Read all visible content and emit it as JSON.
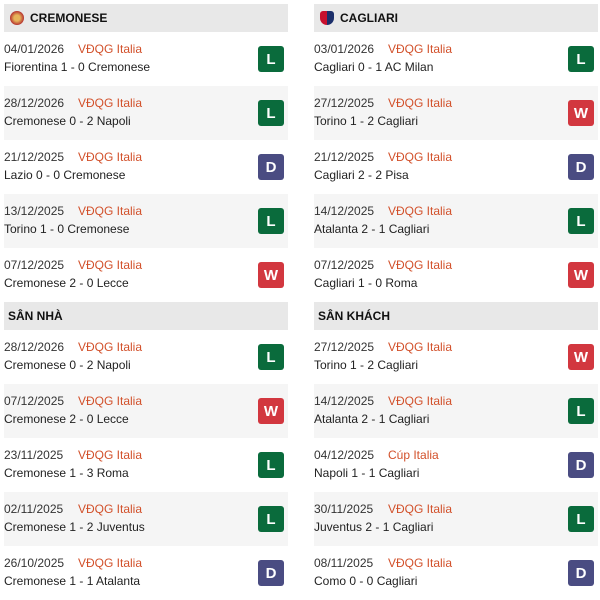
{
  "left": {
    "team": "CREMONESE",
    "team_logo": "cremonese-crest-icon",
    "recent": [
      {
        "date": "04/01/2026",
        "league": "VĐQG Italia",
        "match": "Fiorentina 1 - 0 Cremonese",
        "result": "L"
      },
      {
        "date": "28/12/2026",
        "league": "VĐQG Italia",
        "match": "Cremonese 0 - 2 Napoli",
        "result": "L"
      },
      {
        "date": "21/12/2025",
        "league": "VĐQG Italia",
        "match": "Lazio 0 - 0 Cremonese",
        "result": "D"
      },
      {
        "date": "13/12/2025",
        "league": "VĐQG Italia",
        "match": "Torino 1 - 0 Cremonese",
        "result": "L"
      },
      {
        "date": "07/12/2025",
        "league": "VĐQG Italia",
        "match": "Cremonese 2 - 0 Lecce",
        "result": "W"
      }
    ],
    "section_title": "SÂN NHÀ",
    "section": [
      {
        "date": "28/12/2026",
        "league": "VĐQG Italia",
        "match": "Cremonese 0 - 2 Napoli",
        "result": "L"
      },
      {
        "date": "07/12/2025",
        "league": "VĐQG Italia",
        "match": "Cremonese 2 - 0 Lecce",
        "result": "W"
      },
      {
        "date": "23/11/2025",
        "league": "VĐQG Italia",
        "match": "Cremonese 1 - 3 Roma",
        "result": "L"
      },
      {
        "date": "02/11/2025",
        "league": "VĐQG Italia",
        "match": "Cremonese 1 - 2 Juventus",
        "result": "L"
      },
      {
        "date": "26/10/2025",
        "league": "VĐQG Italia",
        "match": "Cremonese 1 - 1 Atalanta",
        "result": "D"
      }
    ]
  },
  "right": {
    "team": "CAGLIARI",
    "team_logo": "cagliari-crest-icon",
    "recent": [
      {
        "date": "03/01/2026",
        "league": "VĐQG Italia",
        "match": "Cagliari 0 - 1 AC Milan",
        "result": "L"
      },
      {
        "date": "27/12/2025",
        "league": "VĐQG Italia",
        "match": "Torino 1 - 2 Cagliari",
        "result": "W"
      },
      {
        "date": "21/12/2025",
        "league": "VĐQG Italia",
        "match": "Cagliari 2 - 2 Pisa",
        "result": "D"
      },
      {
        "date": "14/12/2025",
        "league": "VĐQG Italia",
        "match": "Atalanta 2 - 1 Cagliari",
        "result": "L"
      },
      {
        "date": "07/12/2025",
        "league": "VĐQG Italia",
        "match": "Cagliari 1 - 0 Roma",
        "result": "W"
      }
    ],
    "section_title": "SÂN KHÁCH",
    "section": [
      {
        "date": "27/12/2025",
        "league": "VĐQG Italia",
        "match": "Torino 1 - 2 Cagliari",
        "result": "W"
      },
      {
        "date": "14/12/2025",
        "league": "VĐQG Italia",
        "match": "Atalanta 2 - 1 Cagliari",
        "result": "L"
      },
      {
        "date": "04/12/2025",
        "league": "Cúp Italia",
        "match": "Napoli 1 - 1 Cagliari",
        "result": "D"
      },
      {
        "date": "30/11/2025",
        "league": "VĐQG Italia",
        "match": "Juventus 2 - 1 Cagliari",
        "result": "L"
      },
      {
        "date": "08/11/2025",
        "league": "VĐQG Italia",
        "match": "Como 0 - 0 Cagliari",
        "result": "D"
      }
    ]
  },
  "colors": {
    "L": "#0a6b3c",
    "W": "#d2373f",
    "D": "#4a4c82",
    "league": "#d2502a"
  }
}
